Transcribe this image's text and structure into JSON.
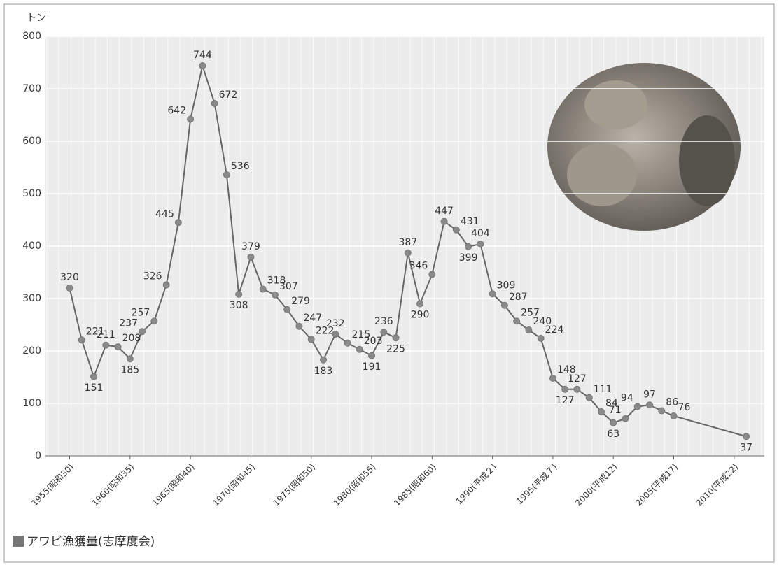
{
  "chart_data": {
    "type": "line",
    "y_label": "トン",
    "legend_label": "アワビ漁獲量(志摩度会)",
    "x": [
      1955,
      1956,
      1957,
      1958,
      1959,
      1960,
      1961,
      1962,
      1963,
      1964,
      1965,
      1966,
      1967,
      1968,
      1969,
      1970,
      1971,
      1972,
      1973,
      1974,
      1975,
      1976,
      1977,
      1978,
      1979,
      1980,
      1981,
      1982,
      1983,
      1984,
      1985,
      1986,
      1987,
      1988,
      1989,
      1990,
      1991,
      1992,
      1993,
      1994,
      1995,
      1996,
      1997,
      1998,
      1999,
      2000,
      2001,
      2002,
      2003,
      2004,
      2005,
      2011
    ],
    "values": [
      320,
      221,
      151,
      211,
      208,
      185,
      237,
      257,
      326,
      445,
      642,
      744,
      672,
      536,
      308,
      379,
      318,
      307,
      279,
      247,
      222,
      183,
      232,
      215,
      203,
      191,
      236,
      225,
      387,
      290,
      346,
      447,
      431,
      399,
      404,
      309,
      287,
      257,
      240,
      224,
      148,
      127,
      127,
      111,
      84,
      63,
      71,
      94,
      97,
      86,
      76,
      37
    ],
    "color": "#666666",
    "marker_color": "#8a8a8a",
    "xlim": [
      1953,
      2012.5
    ],
    "ylim": [
      0,
      800
    ],
    "yticks": [
      0,
      100,
      200,
      300,
      400,
      500,
      600,
      700,
      800
    ],
    "xticks": [
      {
        "value": 1955,
        "label": "1955(昭和30)"
      },
      {
        "value": 1960,
        "label": "1960(昭和35)"
      },
      {
        "value": 1965,
        "label": "1965(昭和40)"
      },
      {
        "value": 1970,
        "label": "1970(昭和45)"
      },
      {
        "value": 1975,
        "label": "1975(昭和50)"
      },
      {
        "value": 1980,
        "label": "1980(昭和55)"
      },
      {
        "value": 1985,
        "label": "1985(昭和60)"
      },
      {
        "value": 1990,
        "label": "1990(平成２)"
      },
      {
        "value": 1995,
        "label": "1995(平成７)"
      },
      {
        "value": 2000,
        "label": "2000(平成12)"
      },
      {
        "value": 2005,
        "label": "2005(平成17)"
      },
      {
        "value": 2010,
        "label": "2010(平成22)"
      }
    ],
    "grid": true
  }
}
